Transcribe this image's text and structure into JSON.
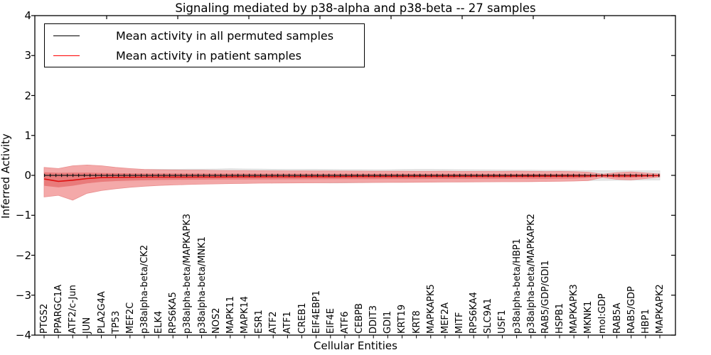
{
  "chart": {
    "title": "Signaling mediated by p38-alpha and p38-beta -- 27 samples",
    "xlabel": "Cellular Entities",
    "ylabel": "Inferred Activity",
    "legend": [
      {
        "label": "Mean activity in all permuted samples",
        "color": "#000000"
      },
      {
        "label": "Mean activity in patient samples",
        "color": "#ff0000"
      }
    ]
  },
  "chart_data": {
    "type": "line",
    "title": "Signaling mediated by p38-alpha and p38-beta -- 27 samples",
    "xlabel": "Cellular Entities",
    "ylabel": "Inferred Activity",
    "ylim": [
      -4,
      4
    ],
    "ytick_labels": [
      "4",
      "3",
      "2",
      "1",
      "0",
      "−1",
      "−2",
      "−3",
      "−4"
    ],
    "ytick_values": [
      4,
      3,
      2,
      1,
      0,
      -1,
      -2,
      -3,
      -4
    ],
    "grid": false,
    "legend_position": "upper left",
    "colors": {
      "permuted_mean_line": "#1a1a1a",
      "patient_mean_line": "#dd1111",
      "permuted_band": "#e4e4e4",
      "patient_outer_band": "#f3a2a2",
      "patient_outer_edge": "#e98f8f",
      "patient_inner_band": "#e87878"
    },
    "categories": [
      "PTGS2",
      "PPARGC1A",
      "ATF2/c-Jun",
      "JUN",
      "PLA2G4A",
      "TP53",
      "MEF2C",
      "p38alpha-beta/CK2",
      "ELK4",
      "RPS6KA5",
      "p38alpha-beta/MAPKAPK3",
      "p38alpha-beta/MNK1",
      "NOS2",
      "MAPK11",
      "MAPK14",
      "ESR1",
      "ATF2",
      "ATF1",
      "CREB1",
      "EIF4EBP1",
      "EIF4E",
      "ATF6",
      "CEBPB",
      "DDIT3",
      "GDI1",
      "KRT19",
      "KRT8",
      "MAPKAPK5",
      "MEF2A",
      "MITF",
      "RPS6KA4",
      "SLC9A1",
      "USF1",
      "p38alpha-beta/HBP1",
      "p38alpha-beta/MAPKAPK2",
      "RAB5/GDP/GDI1",
      "HSPB1",
      "MAPKAPK3",
      "MKNK1",
      "mol:GDP",
      "RAB5A",
      "RAB5/GDP",
      "HBP1",
      "MAPKAPK2"
    ],
    "series": [
      {
        "name": "Mean activity in all permuted samples",
        "values": [
          0,
          0,
          0,
          0,
          0,
          0,
          0,
          0,
          0,
          0,
          0,
          0,
          0,
          0,
          0,
          0,
          0,
          0,
          0,
          0,
          0,
          0,
          0,
          0,
          0,
          0,
          0,
          0,
          0,
          0,
          0,
          0,
          0,
          0,
          0,
          0,
          0,
          0,
          0,
          0,
          0,
          0,
          0,
          0
        ]
      },
      {
        "name": "Mean activity in patient samples",
        "values": [
          -0.09,
          -0.15,
          -0.12,
          -0.08,
          -0.055,
          -0.05,
          -0.048,
          -0.045,
          -0.044,
          -0.043,
          -0.042,
          -0.041,
          -0.04,
          -0.039,
          -0.038,
          -0.037,
          -0.036,
          -0.035,
          -0.034,
          -0.033,
          -0.033,
          -0.032,
          -0.031,
          -0.031,
          -0.03,
          -0.03,
          -0.029,
          -0.028,
          -0.028,
          -0.027,
          -0.026,
          -0.026,
          -0.025,
          -0.024,
          -0.023,
          -0.022,
          -0.021,
          -0.02,
          -0.018,
          -0.01,
          -0.015,
          -0.014,
          -0.01,
          -0.005
        ]
      }
    ],
    "bands": [
      {
        "name": "permuted-samples-range",
        "upper": [
          0.05,
          0.08,
          0.1,
          0.12,
          0.13,
          0.14,
          0.145,
          0.15,
          0.152,
          0.153,
          0.154,
          0.155,
          0.158,
          0.165,
          0.16,
          0.156,
          0.152,
          0.15,
          0.15,
          0.147,
          0.145,
          0.143,
          0.142,
          0.141,
          0.141,
          0.146,
          0.15,
          0.149,
          0.145,
          0.142,
          0.14,
          0.137,
          0.135,
          0.132,
          0.13,
          0.127,
          0.126,
          0.122,
          0.12,
          0.117,
          0.116,
          0.115,
          0.115,
          0.115
        ],
        "lower": [
          -0.08,
          -0.1,
          -0.12,
          -0.14,
          -0.15,
          -0.16,
          -0.165,
          -0.168,
          -0.17,
          -0.17,
          -0.17,
          -0.17,
          -0.17,
          -0.171,
          -0.171,
          -0.172,
          -0.173,
          -0.175,
          -0.18,
          -0.186,
          -0.19,
          -0.189,
          -0.185,
          -0.18,
          -0.176,
          -0.172,
          -0.17,
          -0.168,
          -0.165,
          -0.162,
          -0.16,
          -0.156,
          -0.152,
          -0.15,
          -0.146,
          -0.142,
          -0.14,
          -0.136,
          -0.131,
          -0.126,
          -0.122,
          -0.12,
          -0.117,
          -0.115
        ]
      },
      {
        "name": "patient-samples-range",
        "upper": [
          0.2,
          0.17,
          0.24,
          0.26,
          0.24,
          0.2,
          0.17,
          0.15,
          0.14,
          0.135,
          0.13,
          0.13,
          0.125,
          0.12,
          0.12,
          0.118,
          0.115,
          0.113,
          0.112,
          0.111,
          0.11,
          0.108,
          0.106,
          0.104,
          0.103,
          0.104,
          0.102,
          0.101,
          0.103,
          0.1,
          0.1,
          0.1,
          0.1,
          0.103,
          0.1,
          0.096,
          0.1,
          0.092,
          0.08,
          0.03,
          0.07,
          0.088,
          0.058,
          0.035
        ],
        "lower": [
          -0.54,
          -0.5,
          -0.62,
          -0.45,
          -0.38,
          -0.335,
          -0.3,
          -0.272,
          -0.252,
          -0.24,
          -0.23,
          -0.221,
          -0.213,
          -0.206,
          -0.2,
          -0.196,
          -0.193,
          -0.19,
          -0.188,
          -0.186,
          -0.184,
          -0.182,
          -0.18,
          -0.178,
          -0.176,
          -0.174,
          -0.172,
          -0.17,
          -0.168,
          -0.166,
          -0.164,
          -0.162,
          -0.16,
          -0.16,
          -0.157,
          -0.153,
          -0.15,
          -0.143,
          -0.13,
          -0.05,
          -0.1,
          -0.112,
          -0.08,
          -0.04
        ]
      },
      {
        "name": "patient-samples-inner-range",
        "upper": [
          0.08,
          0.062,
          0.07,
          0.07,
          0.06,
          0.055,
          0.052,
          0.05,
          0.049,
          0.048,
          0.047,
          0.046,
          0.045,
          0.044,
          0.044,
          0.043,
          0.043,
          0.042,
          0.042,
          0.041,
          0.041,
          0.04,
          0.04,
          0.04,
          0.039,
          0.039,
          0.038,
          0.038,
          0.038,
          0.037,
          0.037,
          0.036,
          0.036,
          0.036,
          0.035,
          0.035,
          0.034,
          0.033,
          0.027,
          0.009,
          0.034,
          0.034,
          0.02,
          0.008
        ],
        "lower": [
          -0.26,
          -0.3,
          -0.26,
          -0.2,
          -0.162,
          -0.143,
          -0.131,
          -0.122,
          -0.116,
          -0.112,
          -0.109,
          -0.106,
          -0.104,
          -0.102,
          -0.101,
          -0.1,
          -0.099,
          -0.098,
          -0.097,
          -0.096,
          -0.095,
          -0.094,
          -0.093,
          -0.092,
          -0.091,
          -0.091,
          -0.09,
          -0.089,
          -0.089,
          -0.088,
          -0.087,
          -0.087,
          -0.086,
          -0.085,
          -0.084,
          -0.083,
          -0.082,
          -0.08,
          -0.062,
          -0.02,
          -0.056,
          -0.056,
          -0.04,
          -0.015
        ]
      }
    ]
  }
}
